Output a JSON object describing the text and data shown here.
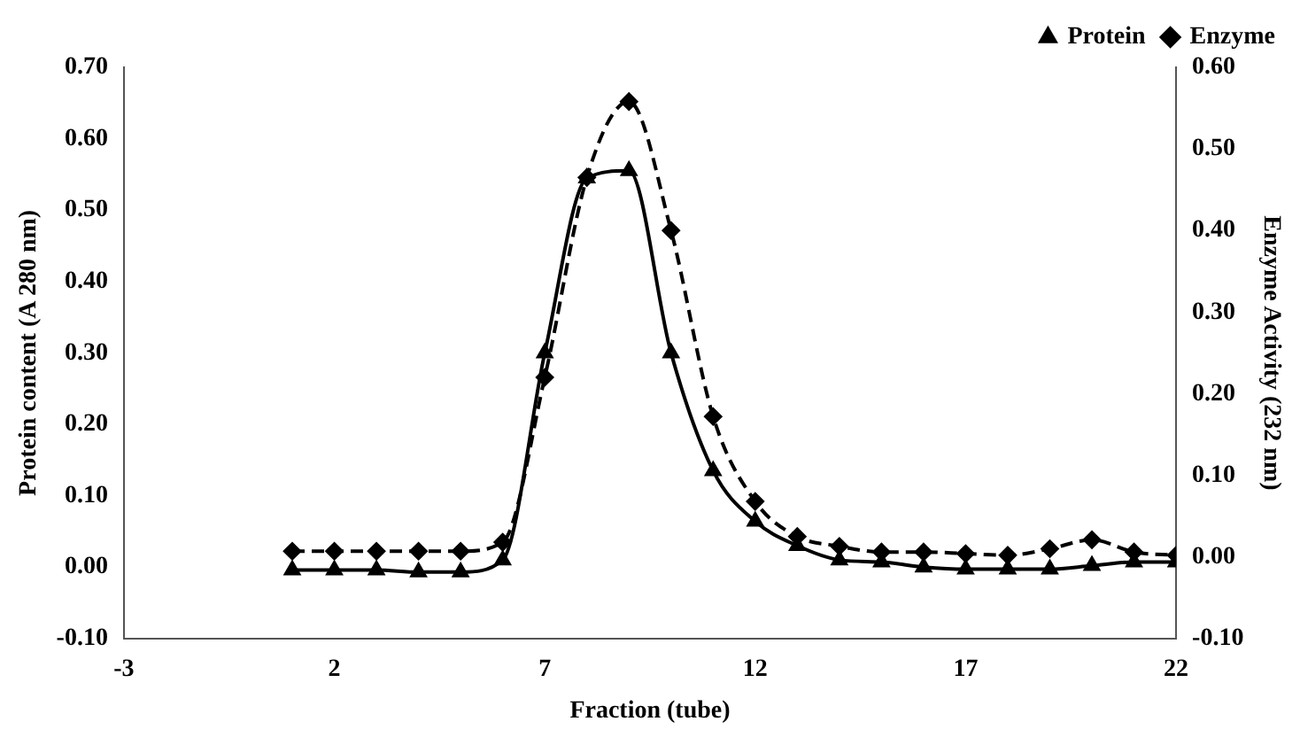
{
  "chart_data": {
    "type": "line",
    "xlabel": "Fraction (tube)",
    "ylabel": "Protein content (A 280 nm)",
    "y2label": "Enzyme Activity (232 nm)",
    "x": [
      1,
      2,
      3,
      4,
      5,
      6,
      7,
      8,
      9,
      10,
      11,
      12,
      13,
      14,
      15,
      16,
      17,
      18,
      19,
      20,
      21,
      22
    ],
    "series": [
      {
        "name": "Protein",
        "color": "#000000",
        "marker": "triangle",
        "line_style": "solid",
        "values": [
          -0.004,
          -0.004,
          -0.004,
          -0.007,
          -0.007,
          0.01,
          0.3,
          0.545,
          0.555,
          0.3,
          0.135,
          0.064,
          0.03,
          0.01,
          0.007,
          0.0,
          -0.003,
          -0.003,
          -0.003,
          0.002,
          0.007,
          0.007
        ]
      },
      {
        "name": "Enzyme",
        "color": "#000000",
        "marker": "diamond",
        "line_style": "dashed",
        "axis": "y2",
        "values": [
          0.007,
          0.007,
          0.007,
          0.007,
          0.007,
          0.018,
          0.22,
          0.465,
          0.558,
          0.4,
          0.172,
          0.068,
          0.025,
          0.013,
          0.006,
          0.006,
          0.004,
          0.002,
          0.01,
          0.021,
          0.006,
          0.002
        ]
      }
    ],
    "xlim": [
      -3,
      22
    ],
    "xticks": [
      -3,
      2,
      7,
      12,
      17,
      22
    ],
    "ylim": [
      -0.1,
      0.7
    ],
    "yticks": [
      {
        "value": -0.1,
        "label": "-0.10"
      },
      {
        "value": 0,
        "label": "0.00"
      },
      {
        "value": 0.1,
        "label": "0.10"
      },
      {
        "value": 0.2,
        "label": "0.20"
      },
      {
        "value": 0.3,
        "label": "0.30"
      },
      {
        "value": 0.4,
        "label": "0.40"
      },
      {
        "value": 0.5,
        "label": "0.50"
      },
      {
        "value": 0.6,
        "label": "0.60"
      },
      {
        "value": 0.7,
        "label": "0.70"
      }
    ],
    "y2lim": [
      -0.1,
      0.6
    ],
    "y2ticks": [
      {
        "value": -0.1,
        "label": "-0.10"
      },
      {
        "value": 0,
        "label": "0.00"
      },
      {
        "value": 0.1,
        "label": "0.10"
      },
      {
        "value": 0.2,
        "label": "0.20"
      },
      {
        "value": 0.3,
        "label": "0.30"
      },
      {
        "value": 0.4,
        "label": "0.40"
      },
      {
        "value": 0.5,
        "label": "0.50"
      },
      {
        "value": 0.6,
        "label": "0.60"
      }
    ],
    "grid": false,
    "legend": "top right"
  }
}
